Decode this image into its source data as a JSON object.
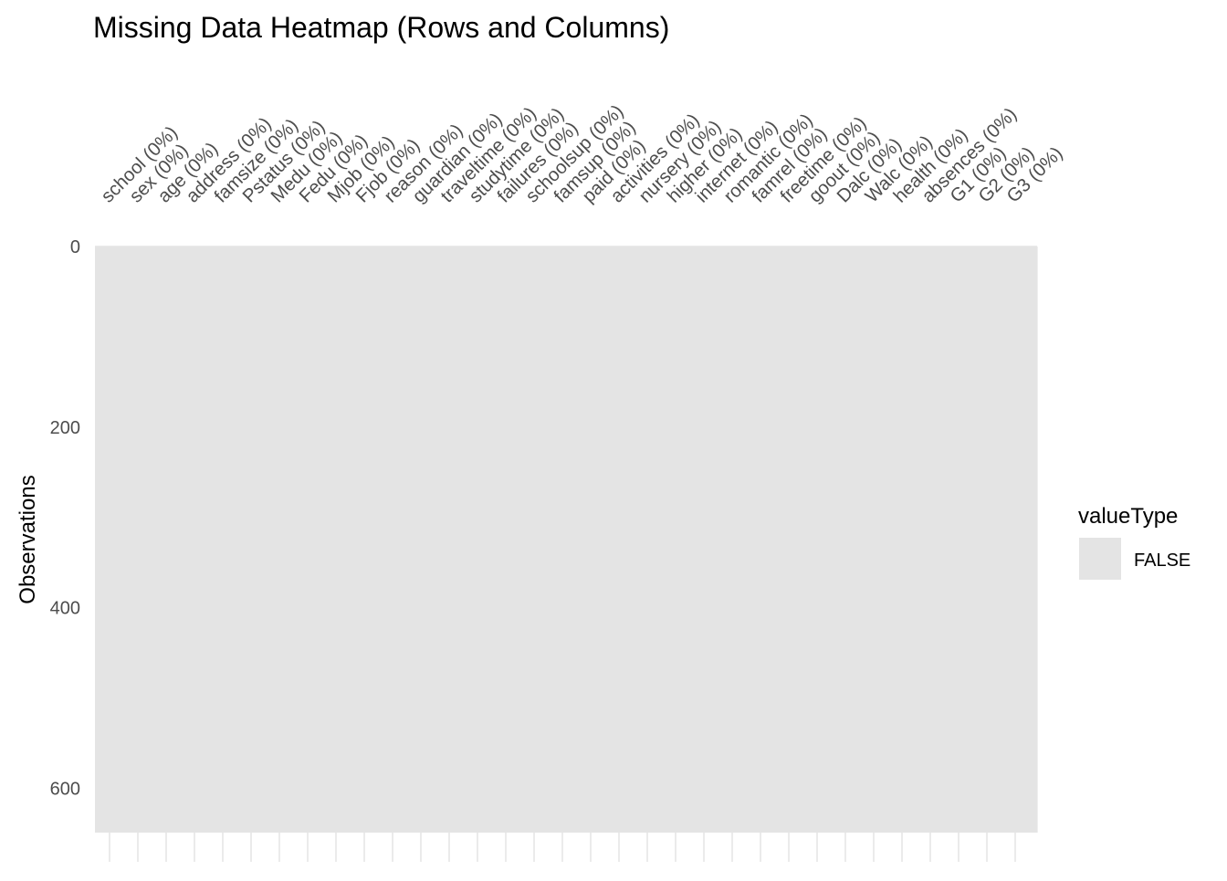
{
  "chart_data": {
    "type": "heatmap",
    "title": "Missing Data Heatmap (Rows and Columns)",
    "xlabel": "",
    "ylabel": "Observations",
    "columns": [
      "school (0%)",
      "sex (0%)",
      "age (0%)",
      "address (0%)",
      "famsize (0%)",
      "Pstatus (0%)",
      "Medu (0%)",
      "Fedu (0%)",
      "Mjob (0%)",
      "Fjob (0%)",
      "reason (0%)",
      "guardian (0%)",
      "traveltime (0%)",
      "studytime (0%)",
      "failures (0%)",
      "schoolsup (0%)",
      "famsup (0%)",
      "paid (0%)",
      "activities (0%)",
      "nursery (0%)",
      "higher (0%)",
      "internet (0%)",
      "romantic (0%)",
      "famrel (0%)",
      "freetime (0%)",
      "goout (0%)",
      "Dalc (0%)",
      "Walc (0%)",
      "health (0%)",
      "absences (0%)",
      "G1 (0%)",
      "G2 (0%)",
      "G3 (0%)"
    ],
    "missing_percent": [
      0,
      0,
      0,
      0,
      0,
      0,
      0,
      0,
      0,
      0,
      0,
      0,
      0,
      0,
      0,
      0,
      0,
      0,
      0,
      0,
      0,
      0,
      0,
      0,
      0,
      0,
      0,
      0,
      0,
      0,
      0,
      0,
      0
    ],
    "n_observations": 649,
    "ylim": [
      0,
      649
    ],
    "y_reversed": true,
    "y_ticks": [
      0,
      200,
      400,
      600
    ],
    "y_minor_ticks": [
      100,
      300,
      500
    ],
    "legend": {
      "title": "valueType",
      "placement": "right",
      "entries": [
        {
          "label": "FALSE",
          "color": "#e4e4e4"
        }
      ]
    },
    "grid": true
  },
  "colors": {
    "tile_false": "#e4e4e4",
    "grid_major": "#ebebeb",
    "grid_minor": "#f5f5f5",
    "title_text": "#000000",
    "axis_text": "#4d4d4d"
  }
}
